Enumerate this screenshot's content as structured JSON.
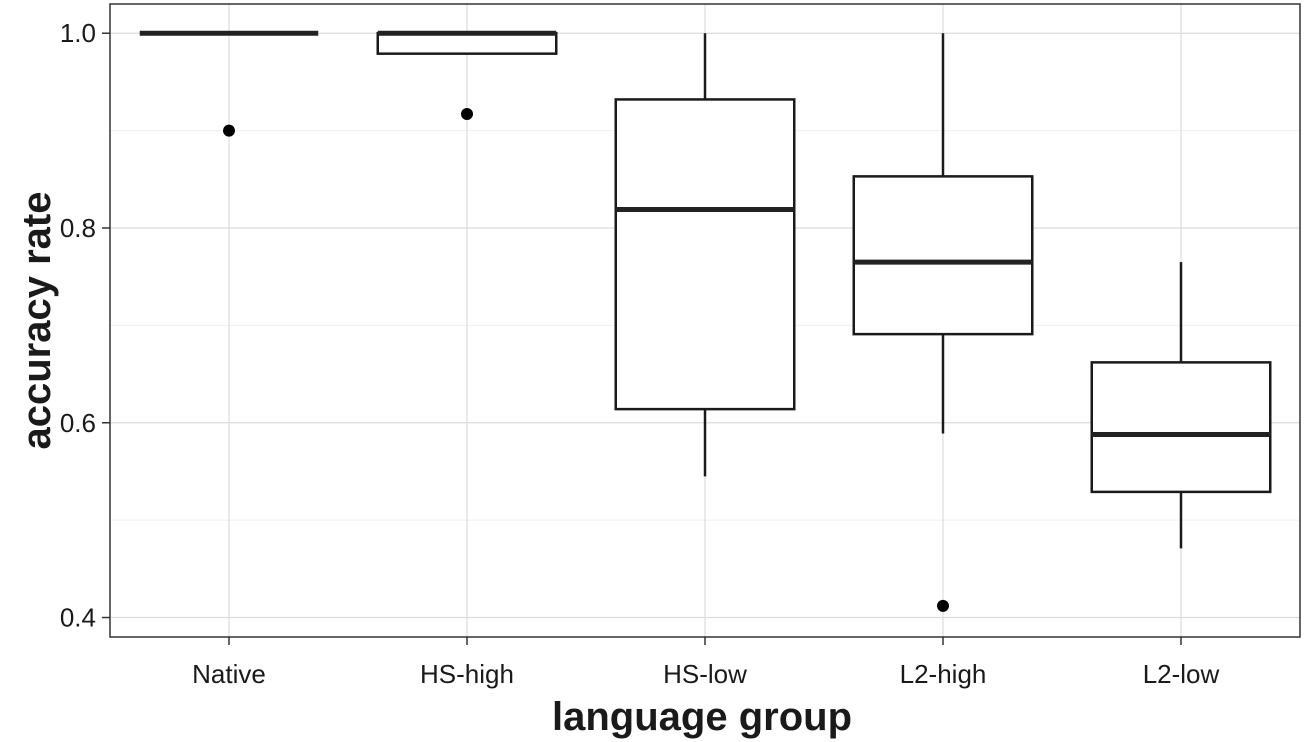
{
  "chart_data": {
    "type": "boxplot",
    "xlabel": "language group",
    "ylabel": "accuracy rate",
    "categories": [
      "Native",
      "HS-high",
      "HS-low",
      "L2-high",
      "L2-low"
    ],
    "ylim": [
      0.38,
      1.03
    ],
    "yticks": [
      0.4,
      0.6,
      0.8,
      1.0
    ],
    "ytick_labels": [
      "0.4",
      "0.6",
      "0.8",
      "1.0"
    ],
    "grid": true,
    "boxes": [
      {
        "category": "Native",
        "lower_whisker": 1.0,
        "q1": 1.0,
        "median": 1.0,
        "q3": 1.0,
        "upper_whisker": 1.0,
        "outliers": [
          0.9
        ]
      },
      {
        "category": "HS-high",
        "lower_whisker": 0.979,
        "q1": 0.979,
        "median": 1.0,
        "q3": 1.0,
        "upper_whisker": 1.0,
        "outliers": [
          0.917
        ]
      },
      {
        "category": "HS-low",
        "lower_whisker": 0.545,
        "q1": 0.614,
        "median": 0.819,
        "q3": 0.932,
        "upper_whisker": 1.0,
        "outliers": []
      },
      {
        "category": "L2-high",
        "lower_whisker": 0.589,
        "q1": 0.691,
        "median": 0.765,
        "q3": 0.853,
        "upper_whisker": 1.0,
        "outliers": [
          0.412
        ]
      },
      {
        "category": "L2-low",
        "lower_whisker": 0.471,
        "q1": 0.529,
        "median": 0.588,
        "q3": 0.662,
        "upper_whisker": 0.765,
        "outliers": []
      }
    ]
  }
}
